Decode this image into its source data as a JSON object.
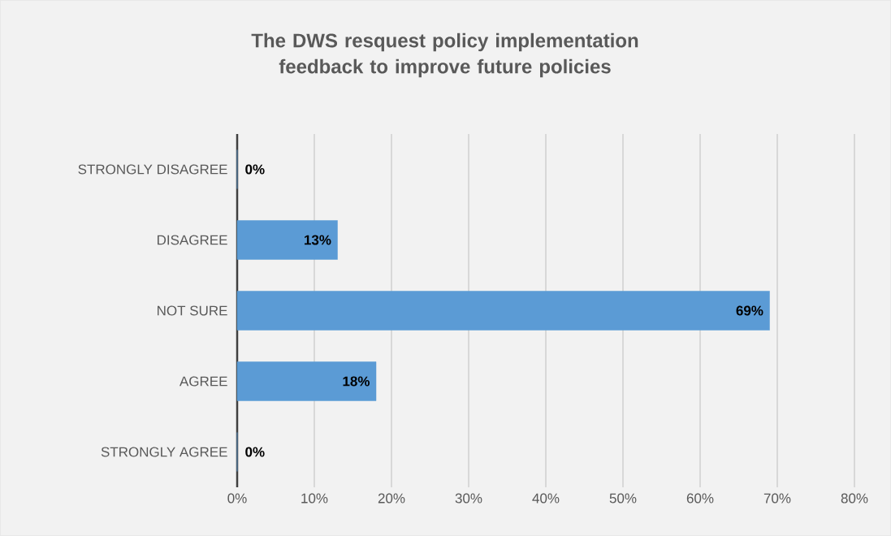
{
  "chart_data": {
    "type": "bar",
    "orientation": "horizontal",
    "title": "The DWS resquest policy implementation feedback to improve future policies",
    "categories": [
      "STRONGLY DISAGREE",
      "DISAGREE",
      "NOT SURE",
      "AGREE",
      "STRONGLY AGREE"
    ],
    "values": [
      0,
      13,
      69,
      18,
      0
    ],
    "value_labels": [
      "0%",
      "13%",
      "69%",
      "18%",
      "0%"
    ],
    "color": "#5b9bd5",
    "xlim": [
      0,
      80
    ],
    "xticks": [
      {
        "value": 0,
        "label": "0%"
      },
      {
        "value": 10,
        "label": "10%"
      },
      {
        "value": 20,
        "label": "20%"
      },
      {
        "value": 30,
        "label": "30%"
      },
      {
        "value": 40,
        "label": "40%"
      },
      {
        "value": 50,
        "label": "50%"
      },
      {
        "value": 60,
        "label": "60%"
      },
      {
        "value": 70,
        "label": "70%"
      },
      {
        "value": 80,
        "label": "80%"
      }
    ],
    "grid": "x"
  }
}
